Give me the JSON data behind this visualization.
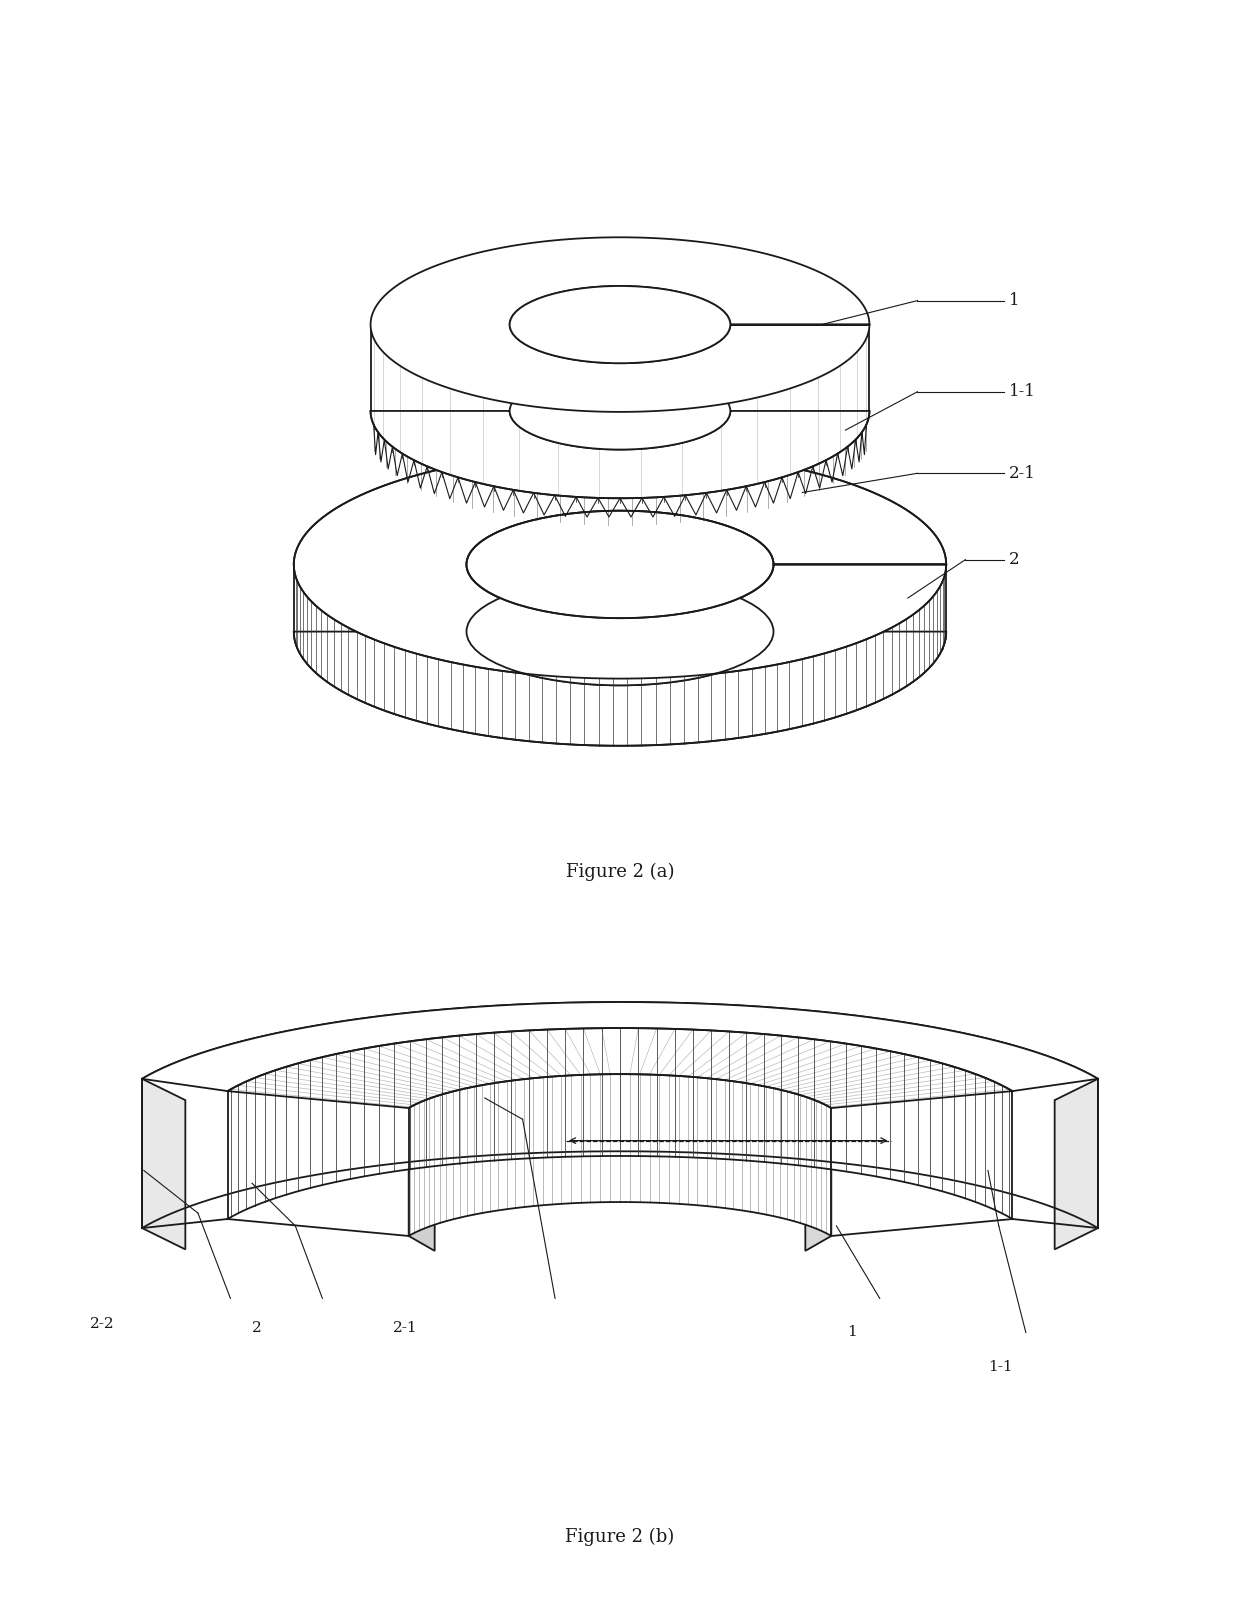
{
  "bg_color": "#ffffff",
  "line_color": "#1a1a1a",
  "fig_width": 12.4,
  "fig_height": 15.99,
  "dpi": 100,
  "fig2a_caption": "Figure 2 (a)",
  "fig2b_caption": "Figure 2 (b)",
  "label_1": "1",
  "label_11": "1-1",
  "label_21": "2-1",
  "label_2": "2",
  "label_22": "2-2"
}
